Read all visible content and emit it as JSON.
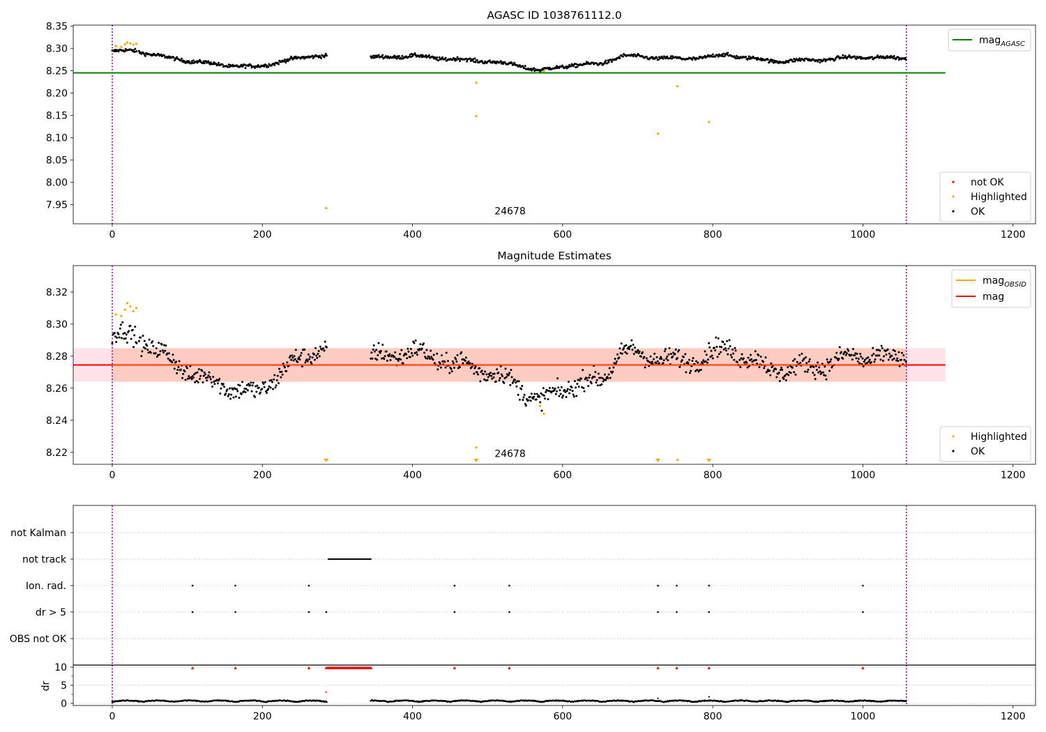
{
  "figure": {
    "width": 1500,
    "height": 1050
  },
  "colors": {
    "ok": "#000000",
    "highlighted": "#ffa500",
    "not_ok": "#ff0000",
    "mag_agasc": "#008000",
    "mag_obsid": "#ffa500",
    "mag": "#ff0000",
    "band": "#ffc0cb",
    "band_inner": "#ffa07a",
    "obs_boundary": "#800080"
  },
  "chart_data": [
    {
      "id": "top",
      "type": "scatter",
      "title": "AGASC ID 1038761112.0",
      "xlim": [
        -52,
        1230
      ],
      "ylim": [
        7.907,
        8.352
      ],
      "xticks": [
        0,
        200,
        400,
        600,
        800,
        1000,
        1200
      ],
      "yticks": [
        7.95,
        8.0,
        8.05,
        8.1,
        8.15,
        8.2,
        8.25,
        8.3,
        8.35
      ],
      "ytick_labels": [
        "7.95",
        "8.00",
        "8.05",
        "8.10",
        "8.15",
        "8.20",
        "8.25",
        "8.30",
        "8.35"
      ],
      "obs_boundaries": [
        0,
        1058
      ],
      "obsid_label": {
        "x": 530,
        "y": 7.928,
        "text": "24678"
      },
      "reference_line": {
        "name": "mag_AGASC",
        "y": 8.245,
        "x_range": [
          -52,
          1110
        ]
      },
      "ok_trend": [
        [
          0,
          8.293
        ],
        [
          30,
          8.295
        ],
        [
          70,
          8.28
        ],
        [
          110,
          8.27
        ],
        [
          150,
          8.262
        ],
        [
          190,
          8.258
        ],
        [
          230,
          8.272
        ],
        [
          270,
          8.284
        ],
        [
          285,
          8.283
        ],
        [
          345,
          8.279
        ],
        [
          400,
          8.283
        ],
        [
          450,
          8.276
        ],
        [
          500,
          8.271
        ],
        [
          540,
          8.262
        ],
        [
          570,
          8.25
        ],
        [
          610,
          8.262
        ],
        [
          650,
          8.265
        ],
        [
          680,
          8.283
        ],
        [
          760,
          8.276
        ],
        [
          820,
          8.285
        ],
        [
          880,
          8.271
        ],
        [
          940,
          8.274
        ],
        [
          990,
          8.28
        ],
        [
          1058,
          8.278
        ]
      ],
      "ok_gaps": [
        [
          286,
          344
        ]
      ],
      "highlighted": [
        [
          5,
          8.305
        ],
        [
          12,
          8.303
        ],
        [
          17,
          8.309
        ],
        [
          20,
          8.313
        ],
        [
          24,
          8.311
        ],
        [
          28,
          8.308
        ],
        [
          32,
          8.31
        ],
        [
          285,
          7.942
        ],
        [
          485,
          8.223
        ],
        [
          485,
          8.148
        ],
        [
          575,
          8.249
        ],
        [
          727,
          8.109
        ],
        [
          753,
          8.215
        ],
        [
          795,
          8.135
        ]
      ],
      "legend_lines": [
        {
          "key": "mag_agasc",
          "label": "mag",
          "subscript": "AGASC"
        }
      ],
      "legend_points": [
        {
          "key": "not_ok",
          "label": "not OK"
        },
        {
          "key": "highlighted",
          "label": "Highlighted"
        },
        {
          "key": "ok",
          "label": "OK"
        }
      ]
    },
    {
      "id": "middle",
      "type": "scatter",
      "title": "Magnitude Estimates",
      "xlim": [
        -52,
        1230
      ],
      "ylim": [
        8.2125,
        8.3365
      ],
      "xticks": [
        0,
        200,
        400,
        600,
        800,
        1000,
        1200
      ],
      "yticks": [
        8.22,
        8.24,
        8.26,
        8.28,
        8.3,
        8.32
      ],
      "ytick_labels": [
        "8.22",
        "8.24",
        "8.26",
        "8.28",
        "8.30",
        "8.32"
      ],
      "obs_boundaries": [
        0,
        1058
      ],
      "obsid_label": {
        "x": 530,
        "y": 8.217,
        "text": "24678"
      },
      "mag_line": {
        "y": 8.2745,
        "x_range": [
          -52,
          1110
        ]
      },
      "band_outer": [
        8.264,
        8.285
      ],
      "band_inner": {
        "x_range": [
          0,
          1058
        ],
        "y_range": [
          8.264,
          8.285
        ]
      },
      "ok_trend": [
        [
          0,
          8.293
        ],
        [
          30,
          8.293
        ],
        [
          70,
          8.28
        ],
        [
          110,
          8.268
        ],
        [
          150,
          8.262
        ],
        [
          190,
          8.256
        ],
        [
          230,
          8.272
        ],
        [
          270,
          8.284
        ],
        [
          285,
          8.283
        ],
        [
          345,
          8.279
        ],
        [
          400,
          8.283
        ],
        [
          450,
          8.276
        ],
        [
          500,
          8.271
        ],
        [
          540,
          8.262
        ],
        [
          570,
          8.251
        ],
        [
          610,
          8.262
        ],
        [
          650,
          8.265
        ],
        [
          680,
          8.283
        ],
        [
          760,
          8.276
        ],
        [
          820,
          8.285
        ],
        [
          880,
          8.271
        ],
        [
          940,
          8.274
        ],
        [
          990,
          8.28
        ],
        [
          1058,
          8.278
        ]
      ],
      "ok_gaps": [
        [
          286,
          344
        ]
      ],
      "highlighted": [
        [
          5,
          8.306
        ],
        [
          12,
          8.305
        ],
        [
          17,
          8.309
        ],
        [
          20,
          8.313
        ],
        [
          24,
          8.311
        ],
        [
          28,
          8.308
        ],
        [
          32,
          8.31
        ],
        [
          485,
          8.223
        ],
        [
          575,
          8.244
        ],
        [
          570,
          8.249
        ],
        [
          753,
          8.2153
        ]
      ],
      "highlighted_below": [
        285,
        485,
        727,
        795
      ],
      "legend_lines": [
        {
          "key": "mag_obsid",
          "label": "mag",
          "subscript": "OBSID"
        },
        {
          "key": "mag",
          "label": "mag",
          "subscript": ""
        }
      ],
      "legend_points": [
        {
          "key": "highlighted",
          "label": "Highlighted"
        },
        {
          "key": "ok",
          "label": "OK"
        }
      ]
    },
    {
      "id": "flags",
      "type": "scatter",
      "title": "",
      "xlim": [
        -52,
        1230
      ],
      "rows": [
        "not Kalman",
        "not track",
        "Ion. rad.",
        "dr > 5",
        "OBS not OK"
      ],
      "obs_boundaries": [
        0,
        1058
      ],
      "not_track_range": [
        288,
        345
      ],
      "ion_rad_x": [
        107,
        164,
        262,
        456,
        529,
        727,
        752,
        795,
        1000
      ],
      "dr5_x": [
        107,
        164,
        262,
        285,
        456,
        529,
        727,
        752,
        795,
        1000
      ]
    },
    {
      "id": "dr",
      "type": "scatter",
      "title": "",
      "ylabel": "dr",
      "xlim": [
        -52,
        1230
      ],
      "ylim": [
        0,
        11
      ],
      "xticks": [
        0,
        200,
        400,
        600,
        800,
        1000,
        1200
      ],
      "yticks": [
        0,
        5,
        10
      ],
      "ytick_labels": [
        "0",
        "5",
        "10"
      ],
      "obs_boundaries": [
        0,
        1058
      ],
      "dr_gap": [
        286,
        344
      ],
      "capped_x": [
        107,
        164,
        262,
        456,
        529,
        727,
        752,
        795,
        1000
      ],
      "capped_range": [
        285,
        345
      ],
      "outliers": [
        [
          285,
          3.1
        ],
        [
          727,
          1.4
        ],
        [
          795,
          1.8
        ]
      ]
    }
  ]
}
